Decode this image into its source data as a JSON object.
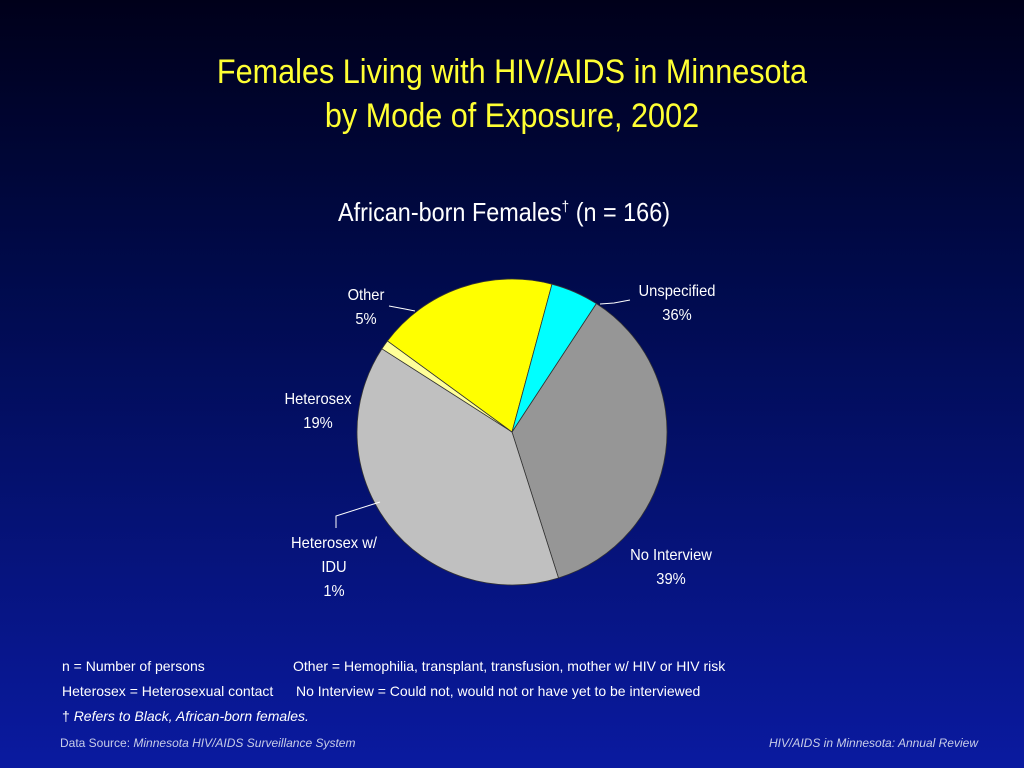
{
  "title_line1": "Females Living with HIV/AIDS in Minnesota",
  "title_line2": "by Mode of Exposure, 2002",
  "subtitle_main": "African-born Females",
  "subtitle_mark": "†",
  "subtitle_n": " (n = 166)",
  "chart_data": {
    "type": "pie",
    "start": "clockwise from top",
    "slices": [
      {
        "label": "Unspecified",
        "value": 36,
        "display": "36%",
        "color": "#969696"
      },
      {
        "label": "No Interview",
        "value": 39,
        "display": "39%",
        "color": "#c0c0c0"
      },
      {
        "label": "Heterosex w/ IDU",
        "value": 1,
        "display": "1%",
        "color": "#ffff99"
      },
      {
        "label": "Heterosex",
        "value": 19,
        "display": "19%",
        "color": "#ffff00"
      },
      {
        "label": "Other",
        "value": 5,
        "display": "5%",
        "color": "#00ffff"
      }
    ]
  },
  "labels": {
    "unspecified": {
      "line1": "Unspecified",
      "line2": "36%"
    },
    "no_interview": {
      "line1": "No Interview",
      "line2": "39%"
    },
    "heterosex_idu": {
      "line1": "Heterosex w/",
      "line2": "IDU",
      "line3": "1%"
    },
    "heterosex": {
      "line1": "Heterosex",
      "line2": "19%"
    },
    "other": {
      "line1": "Other",
      "line2": "5%"
    }
  },
  "notes": {
    "n_def": "n = Number of persons",
    "other_def": "Other = Hemophilia, transplant, transfusion, mother w/ HIV or HIV risk",
    "heterosex_def": "Heterosex = Heterosexual contact",
    "no_interview_def": "No Interview = Could not, would not or have yet to be interviewed",
    "dagger": "†",
    "dagger_text": "Refers to Black, African-born females."
  },
  "footer": {
    "source_label": "Data Source:",
    "source_name": "Minnesota HIV/AIDS Surveillance System",
    "right": "HIV/AIDS in Minnesota: Annual Review"
  }
}
